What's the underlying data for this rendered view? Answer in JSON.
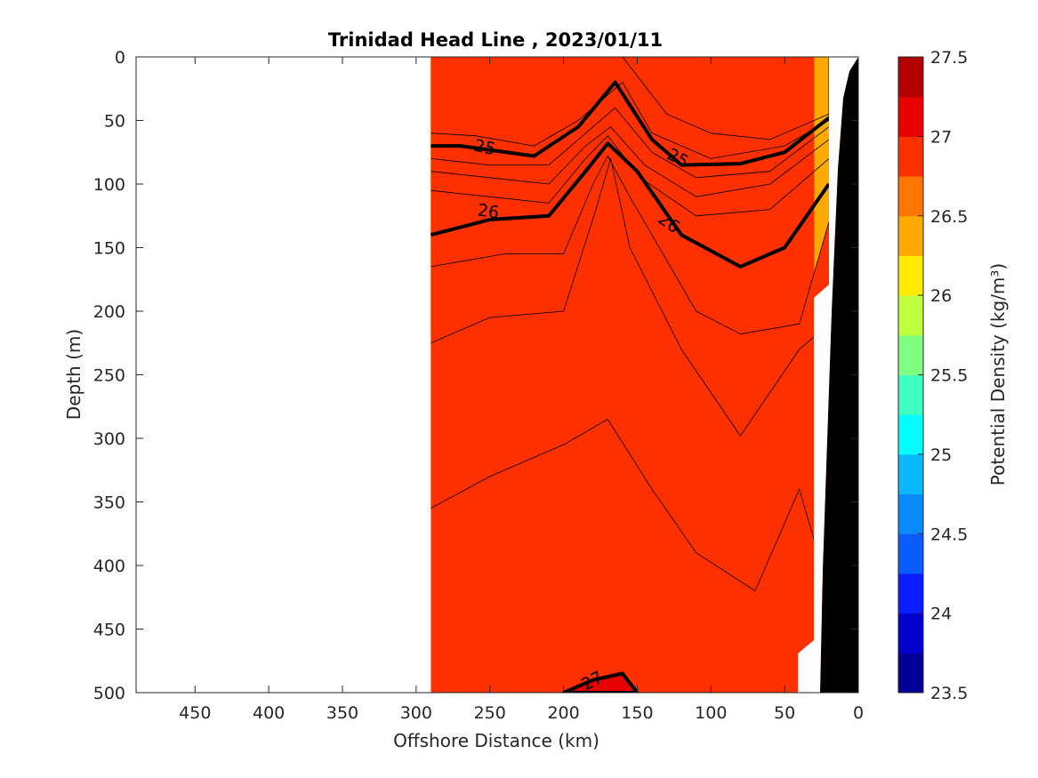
{
  "chart_data": {
    "type": "contour",
    "title": "Trinidad Head Line , 2023/01/11",
    "xlabel": "Offshore Distance (km)",
    "ylabel": "Depth (m)",
    "colorbar_label": "Potential Density (kg/m³)",
    "xlim": [
      490,
      0
    ],
    "ylim": [
      0,
      500
    ],
    "x_reversed": true,
    "y_reversed": true,
    "x_ticks": [
      "450",
      "400",
      "350",
      "300",
      "250",
      "200",
      "150",
      "100",
      "50",
      "0"
    ],
    "y_ticks": [
      "0",
      "50",
      "100",
      "150",
      "200",
      "250",
      "300",
      "350",
      "400",
      "450",
      "500"
    ],
    "colorbar_ticks": [
      "23.5",
      "24",
      "24.5",
      "25",
      "25.5",
      "26",
      "26.5",
      "27",
      "27.5"
    ],
    "colorbar_range": [
      23.5,
      27.5
    ],
    "colorbar_step": 0.25,
    "colormap": [
      "#000099",
      "#0000cc",
      "#0a1eff",
      "#0a5cff",
      "#0a8aff",
      "#0ab8ff",
      "#00ffff",
      "#40ffc0",
      "#80ff80",
      "#bfff3f",
      "#ffea00",
      "#ffaa00",
      "#ff7700",
      "#ff3000",
      "#e60000",
      "#b30000"
    ],
    "contour_labels": [
      "25",
      "25",
      "26",
      "26",
      "27"
    ],
    "data_extent_km": [
      0,
      290
    ],
    "bottom_fill_color": "#000000",
    "levels": [
      {
        "value": 24.5,
        "color": "#0a8aff",
        "boundary": [
          [
            290,
            0
          ],
          [
            20,
            0
          ],
          [
            20,
            45
          ],
          [
            60,
            65
          ],
          [
            100,
            60
          ],
          [
            130,
            45
          ],
          [
            160,
            0
          ]
        ]
      },
      {
        "value": 24.75,
        "color": "#0ab8ff",
        "boundary": [
          [
            290,
            0
          ],
          [
            20,
            0
          ],
          [
            20,
            50
          ],
          [
            50,
            70
          ],
          [
            100,
            80
          ],
          [
            140,
            60
          ],
          [
            160,
            20
          ],
          [
            190,
            50
          ],
          [
            220,
            70
          ],
          [
            260,
            62
          ],
          [
            290,
            60
          ]
        ]
      },
      {
        "value": 25.0,
        "color": "#00ffff",
        "boundary": [
          [
            290,
            70
          ],
          [
            270,
            70
          ],
          [
            220,
            78
          ],
          [
            190,
            55
          ],
          [
            165,
            20
          ],
          [
            140,
            65
          ],
          [
            120,
            85
          ],
          [
            80,
            84
          ],
          [
            50,
            75
          ],
          [
            20,
            48
          ]
        ]
      },
      {
        "value": 25.25,
        "color": "#40ffc0",
        "boundary": [
          [
            290,
            80
          ],
          [
            250,
            85
          ],
          [
            210,
            85
          ],
          [
            180,
            55
          ],
          [
            165,
            40
          ],
          [
            140,
            75
          ],
          [
            110,
            95
          ],
          [
            60,
            90
          ],
          [
            20,
            55
          ]
        ]
      },
      {
        "value": 25.5,
        "color": "#80ff80",
        "boundary": [
          [
            290,
            90
          ],
          [
            250,
            95
          ],
          [
            210,
            100
          ],
          [
            185,
            70
          ],
          [
            168,
            55
          ],
          [
            145,
            85
          ],
          [
            110,
            110
          ],
          [
            60,
            100
          ],
          [
            20,
            65
          ]
        ]
      },
      {
        "value": 25.75,
        "color": "#bfff3f",
        "boundary": [
          [
            290,
            105
          ],
          [
            250,
            110
          ],
          [
            210,
            115
          ],
          [
            185,
            80
          ],
          [
            170,
            62
          ],
          [
            148,
            95
          ],
          [
            110,
            125
          ],
          [
            60,
            120
          ],
          [
            20,
            80
          ]
        ]
      },
      {
        "value": 26.0,
        "color": "#ffea00",
        "boundary": [
          [
            290,
            140
          ],
          [
            250,
            128
          ],
          [
            210,
            125
          ],
          [
            185,
            90
          ],
          [
            170,
            68
          ],
          [
            150,
            90
          ],
          [
            120,
            140
          ],
          [
            80,
            165
          ],
          [
            50,
            150
          ],
          [
            20,
            100
          ]
        ]
      },
      {
        "value": 26.25,
        "color": "#ffaa00",
        "boundary": [
          [
            290,
            165
          ],
          [
            240,
            155
          ],
          [
            200,
            155
          ],
          [
            180,
            100
          ],
          [
            170,
            78
          ],
          [
            155,
            110
          ],
          [
            110,
            200
          ],
          [
            80,
            218
          ],
          [
            40,
            210
          ],
          [
            20,
            130
          ]
        ]
      },
      {
        "value": 26.5,
        "color": "#ff7700",
        "boundary": [
          [
            290,
            225
          ],
          [
            250,
            205
          ],
          [
            200,
            200
          ],
          [
            178,
            120
          ],
          [
            168,
            80
          ],
          [
            155,
            150
          ],
          [
            120,
            230
          ],
          [
            80,
            298
          ],
          [
            40,
            230
          ],
          [
            30,
            220
          ]
        ]
      },
      {
        "value": 26.75,
        "color": "#ff3000",
        "boundary": [
          [
            290,
            355
          ],
          [
            250,
            330
          ],
          [
            200,
            305
          ],
          [
            170,
            285
          ],
          [
            140,
            340
          ],
          [
            110,
            390
          ],
          [
            70,
            420
          ],
          [
            40,
            340
          ],
          [
            30,
            380
          ]
        ]
      },
      {
        "value": 27.0,
        "color": "#e60000",
        "boundary": [
          [
            200,
            500
          ],
          [
            180,
            490
          ],
          [
            160,
            485
          ],
          [
            150,
            500
          ]
        ]
      }
    ]
  }
}
